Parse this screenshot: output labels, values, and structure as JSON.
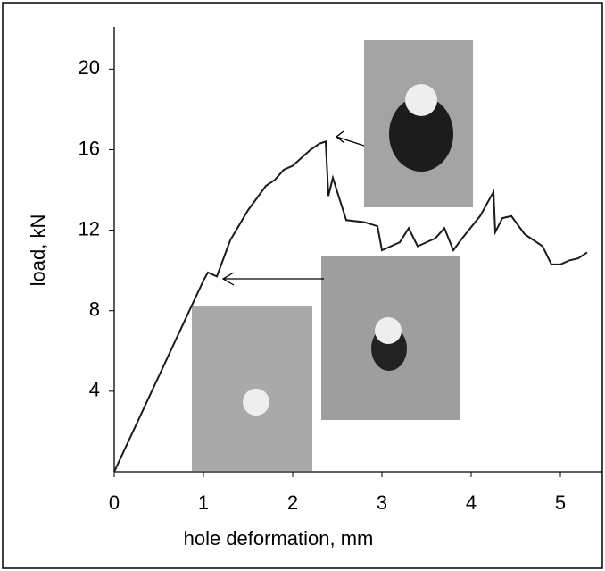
{
  "chart_data": {
    "type": "line",
    "x_label": "hole deformation, mm",
    "y_label": "load, kN",
    "xlim": [
      0,
      5.47
    ],
    "ylim": [
      0,
      22.1
    ],
    "xticks": [
      0,
      1,
      2,
      3,
      4,
      5
    ],
    "yticks": [
      4,
      8,
      12,
      16,
      20
    ],
    "grid": false,
    "series": [
      {
        "color": "#1a1a1a",
        "x": [
          0,
          1.0,
          1.05,
          1.15,
          1.3,
          1.5,
          1.7,
          1.8,
          1.9,
          2.0,
          2.1,
          2.2,
          2.3,
          2.37,
          2.4,
          2.45,
          2.5,
          2.55,
          2.6,
          2.8,
          2.95,
          3.0,
          3.2,
          3.3,
          3.4,
          3.6,
          3.7,
          3.8,
          3.9,
          4.1,
          4.25,
          4.27,
          4.35,
          4.45,
          4.6,
          4.8,
          4.9,
          5.0,
          5.1,
          5.2,
          5.3
        ],
        "values": [
          0,
          9.5,
          9.9,
          9.7,
          11.5,
          13,
          14.2,
          14.5,
          15,
          15.2,
          15.6,
          16,
          16.3,
          16.4,
          13.7,
          14.6,
          13.9,
          13.2,
          12.5,
          12.4,
          12.2,
          11.0,
          11.4,
          12.1,
          11.2,
          11.6,
          12.1,
          11.0,
          11.6,
          12.7,
          13.9,
          11.9,
          12.6,
          12.7,
          11.8,
          11.2,
          10.3,
          10.3,
          10.5,
          10.6,
          10.9
        ]
      }
    ]
  }
}
